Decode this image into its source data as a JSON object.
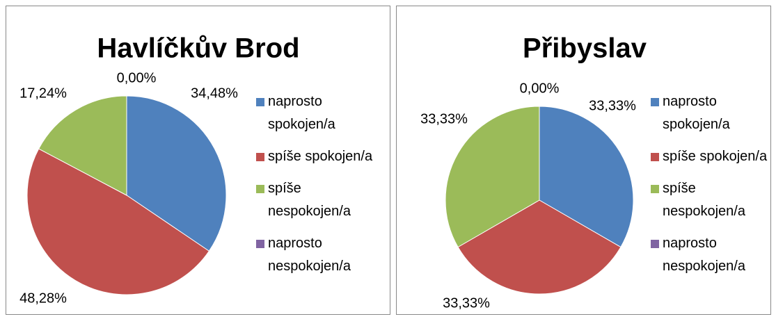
{
  "chart_data": [
    {
      "type": "pie",
      "title": "Havlíčkův Brod",
      "categories": [
        "naprosto spokojen/a",
        "spíše spokojen/a",
        "spíše nespokojen/a",
        "naprosto nespokojen/a"
      ],
      "values": [
        34.48,
        48.28,
        17.24,
        0
      ],
      "value_labels": [
        "34,48%",
        "48,28%",
        "17,24%",
        "0,00%"
      ],
      "colors": [
        "#4f81bd",
        "#c0504d",
        "#9bbb59",
        "#8064a2"
      ],
      "legend": "right"
    },
    {
      "type": "pie",
      "title": "Přibyslav",
      "categories": [
        "naprosto spokojen/a",
        "spíše spokojen/a",
        "spíše nespokojen/a",
        "naprosto nespokojen/a"
      ],
      "values": [
        33.33,
        33.33,
        33.33,
        0
      ],
      "value_labels": [
        "33,33%",
        "33,33%",
        "33,33%",
        "0,00%"
      ],
      "colors": [
        "#4f81bd",
        "#c0504d",
        "#9bbb59",
        "#8064a2"
      ],
      "legend": "right"
    }
  ]
}
